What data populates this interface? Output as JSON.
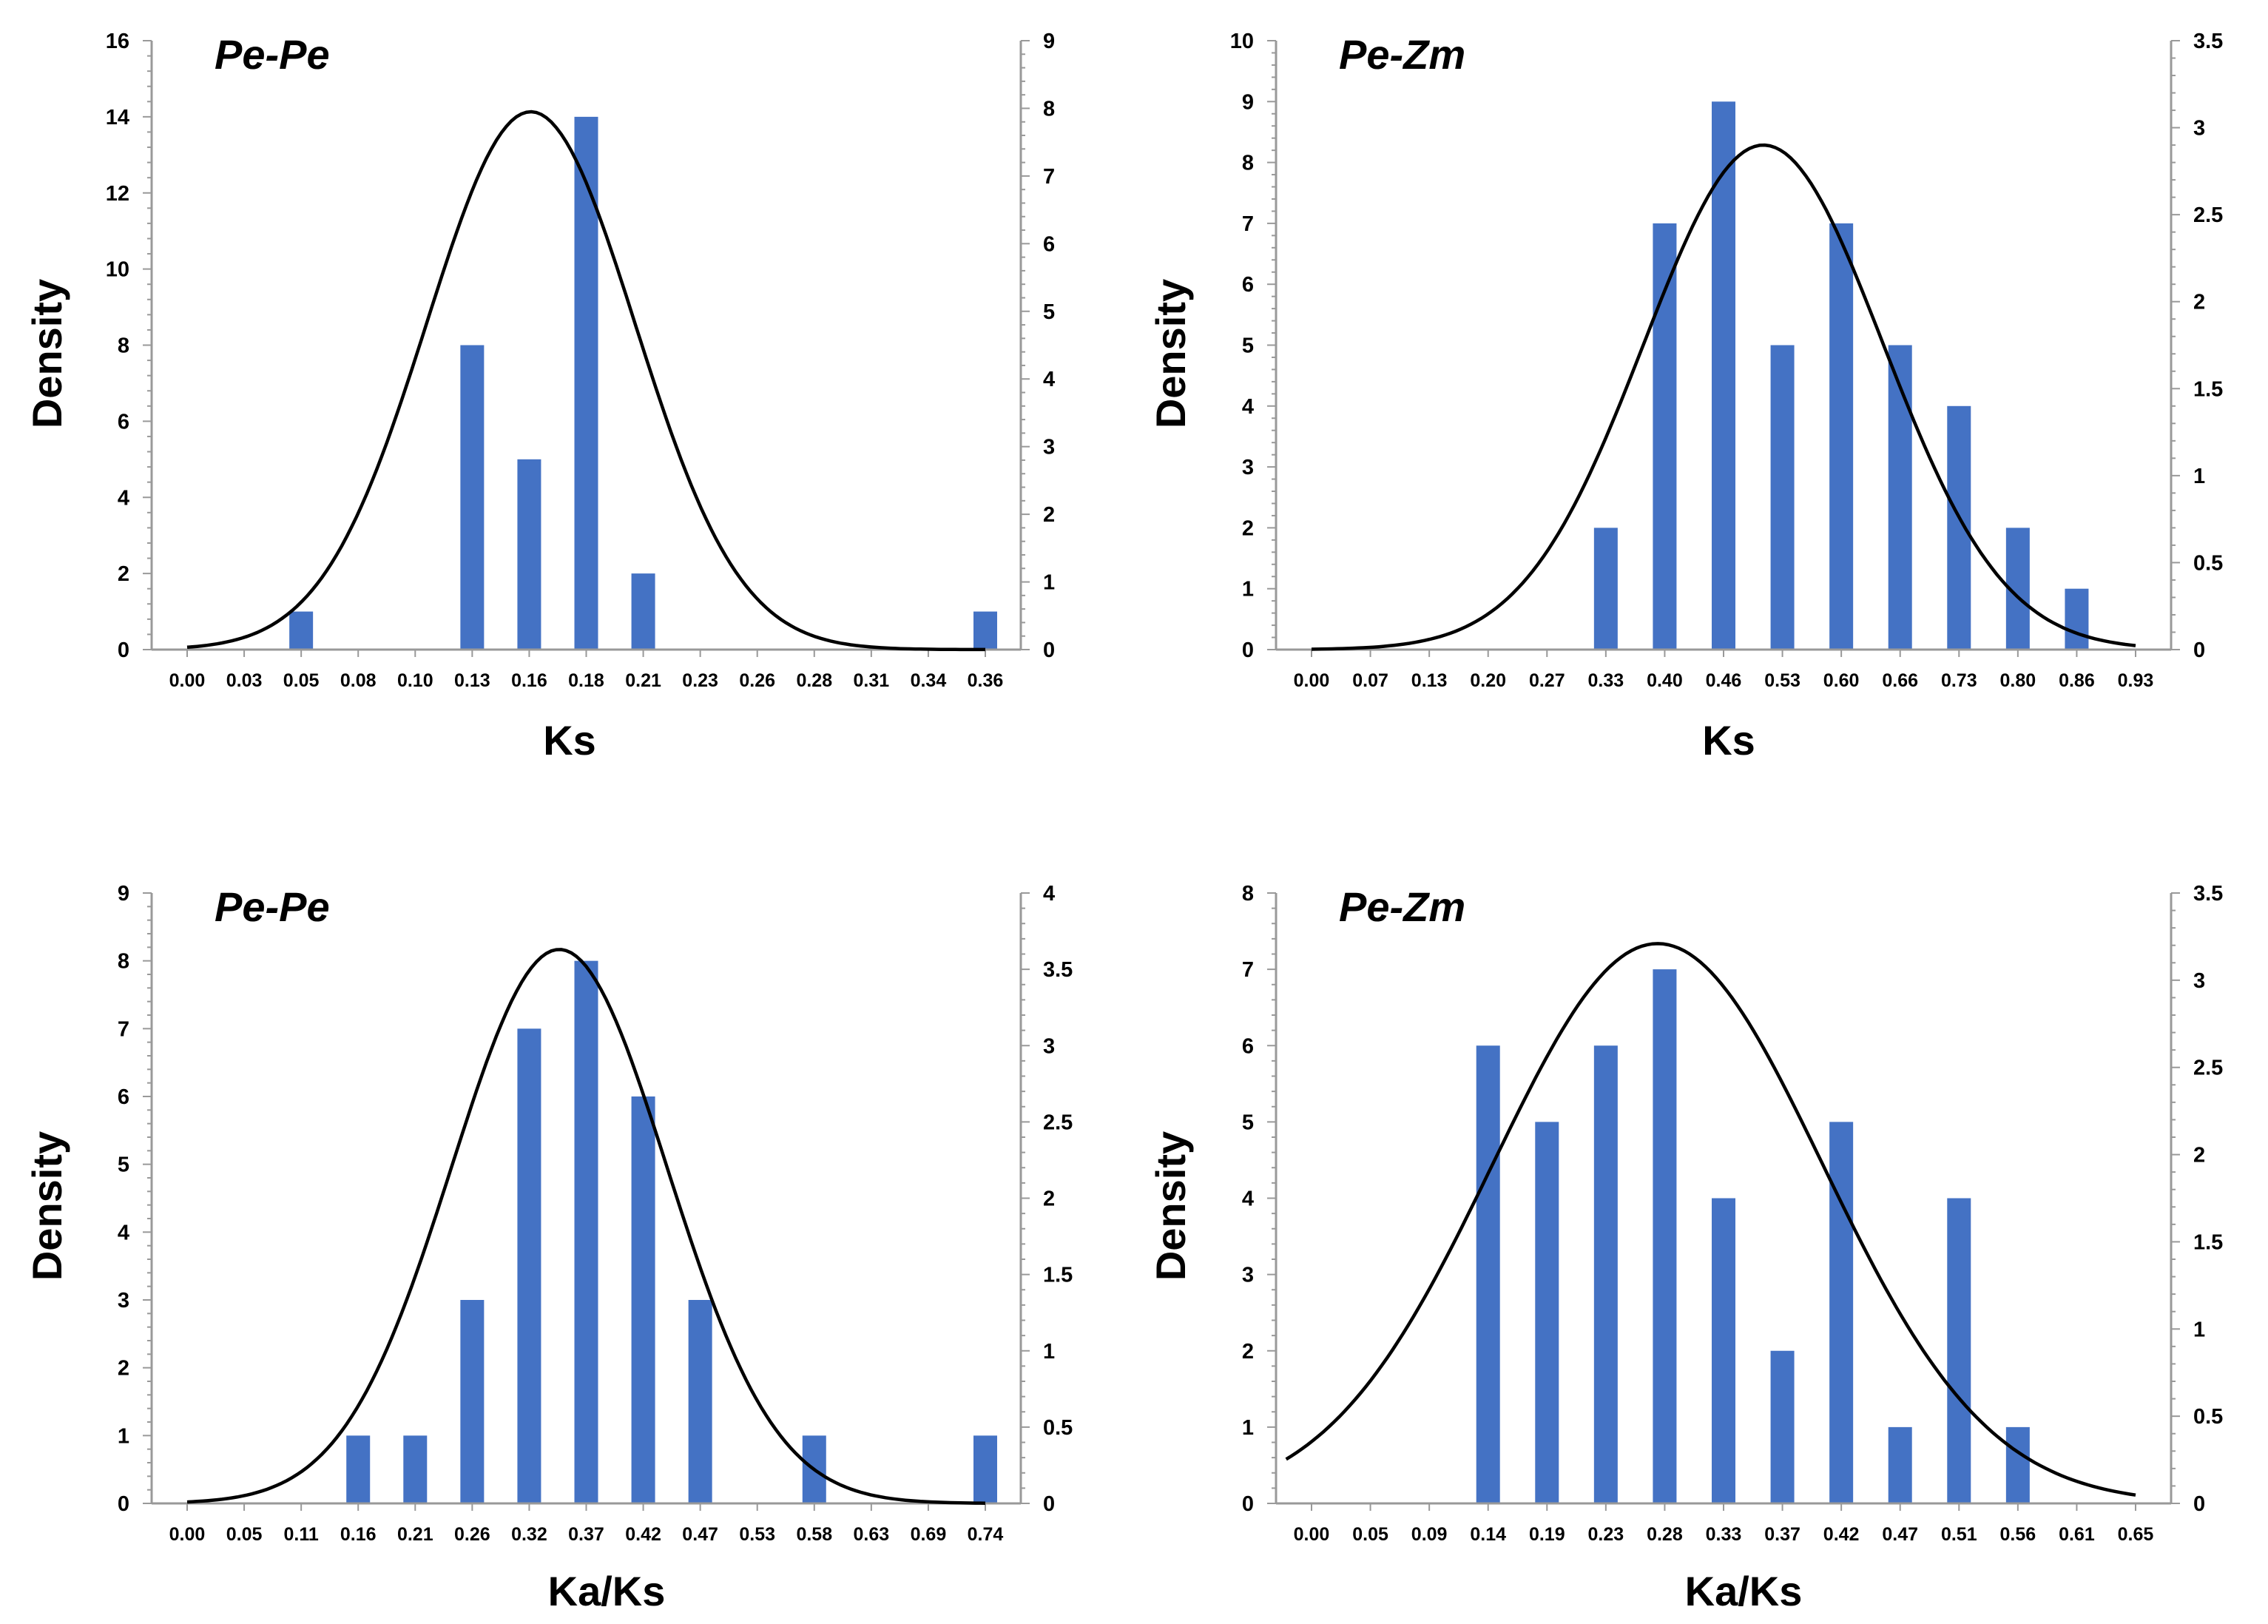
{
  "chart_data": [
    {
      "type": "bar",
      "title": "Pe-Pe",
      "xlabel": "Ks",
      "ylabel": "Density",
      "categories": [
        "0.00",
        "0.03",
        "0.05",
        "0.08",
        "0.10",
        "0.13",
        "0.16",
        "0.18",
        "0.21",
        "0.23",
        "0.26",
        "0.28",
        "0.31",
        "0.34",
        "0.36"
      ],
      "values": [
        0,
        0,
        1,
        0,
        0,
        8,
        5,
        14,
        2,
        0,
        0,
        0,
        0,
        0,
        1
      ],
      "ylim": [
        0,
        16
      ],
      "yticks": [
        0,
        2,
        4,
        6,
        8,
        10,
        12,
        14,
        16
      ],
      "y2lim": [
        0,
        9
      ],
      "y2ticks": [
        0,
        1,
        2,
        3,
        4,
        5,
        6,
        7,
        8,
        9
      ],
      "curve": {
        "type": "normal",
        "mean": 0.155,
        "sd": 0.047,
        "peak": 7.95,
        "x_range": [
          0,
          0.36
        ]
      }
    },
    {
      "type": "bar",
      "title": "Pe-Zm",
      "xlabel": "Ks",
      "ylabel": "Density",
      "categories": [
        "0.00",
        "0.07",
        "0.13",
        "0.20",
        "0.27",
        "0.33",
        "0.40",
        "0.46",
        "0.53",
        "0.60",
        "0.66",
        "0.73",
        "0.80",
        "0.86",
        "0.93"
      ],
      "values": [
        0,
        0,
        0,
        0,
        0,
        2,
        7,
        9,
        5,
        7,
        5,
        4,
        2,
        1,
        0
      ],
      "ylim": [
        0,
        10
      ],
      "yticks": [
        0,
        1,
        2,
        3,
        4,
        5,
        6,
        7,
        8,
        9,
        10
      ],
      "y2lim": [
        0,
        3.5
      ],
      "y2ticks": [
        0,
        0.5,
        1,
        1.5,
        2,
        2.5,
        3,
        3.5
      ],
      "curve": {
        "type": "normal",
        "mean": 0.51,
        "sd": 0.135,
        "peak": 2.9,
        "x_range": [
          0,
          0.93
        ]
      }
    },
    {
      "type": "bar",
      "title": "Pe-Pe",
      "xlabel": "Ka/Ks",
      "ylabel": "Density",
      "categories": [
        "0.00",
        "0.05",
        "0.11",
        "0.16",
        "0.21",
        "0.26",
        "0.32",
        "0.37",
        "0.42",
        "0.47",
        "0.53",
        "0.58",
        "0.63",
        "0.69",
        "0.74"
      ],
      "values": [
        0,
        0,
        0,
        1,
        1,
        3,
        7,
        8,
        6,
        3,
        0,
        1,
        0,
        0,
        1
      ],
      "ylim": [
        0,
        9
      ],
      "yticks": [
        0,
        1,
        2,
        3,
        4,
        5,
        6,
        7,
        8,
        9
      ],
      "y2lim": [
        0,
        4
      ],
      "y2ticks": [
        0,
        0.5,
        1,
        1.5,
        2,
        2.5,
        3,
        3.5,
        4
      ],
      "curve": {
        "type": "normal",
        "mean": 0.345,
        "sd": 0.1,
        "peak": 3.63,
        "x_range": [
          0,
          0.74
        ]
      }
    },
    {
      "type": "bar",
      "title": "Pe-Zm",
      "xlabel": "Ka/Ks",
      "ylabel": "Density",
      "categories": [
        "0.00",
        "0.05",
        "0.09",
        "0.14",
        "0.19",
        "0.23",
        "0.28",
        "0.33",
        "0.37",
        "0.42",
        "0.47",
        "0.51",
        "0.56",
        "0.61",
        "0.65"
      ],
      "values": [
        0,
        0,
        0,
        6,
        5,
        6,
        7,
        4,
        2,
        5,
        1,
        4,
        1,
        0,
        0
      ],
      "ylim": [
        0,
        8
      ],
      "yticks": [
        0,
        1,
        2,
        3,
        4,
        5,
        6,
        7,
        8
      ],
      "y2lim": [
        0,
        3.5
      ],
      "y2ticks": [
        0,
        0.5,
        1,
        1.5,
        2,
        2.5,
        3,
        3.5
      ],
      "curve": {
        "type": "normal",
        "mean": 0.273,
        "sd": 0.13,
        "peak": 3.21,
        "x_range": [
          -0.02,
          0.65
        ]
      }
    }
  ]
}
